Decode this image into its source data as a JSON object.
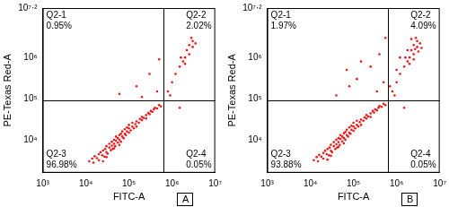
{
  "chart_data": [
    {
      "type": "scatter",
      "panel": "A",
      "x_label": "FITC-A",
      "y_label": "PE-Texas Red-A",
      "log": true,
      "grid": false,
      "color": "#f01414",
      "marker": "dot",
      "xlim": [
        1000,
        10000000
      ],
      "ylim": [
        1584.89,
        15848931.92
      ],
      "xticks": [
        {
          "value": 1000,
          "label": "10³"
        },
        {
          "value": 10000,
          "label": "10⁴"
        },
        {
          "value": 100000,
          "label": "10⁵"
        },
        {
          "value": 1000000,
          "label": "10⁶"
        },
        {
          "value": 10000000,
          "label": "10⁷"
        }
      ],
      "yticks": [
        {
          "value": 10000,
          "label": "10⁴"
        },
        {
          "value": 100000,
          "label": "10⁵"
        },
        {
          "value": 1000000,
          "label": "10⁶"
        },
        {
          "value": 15848931.92,
          "label": "10⁷·²"
        }
      ],
      "gates": {
        "x": 630000,
        "y": 90000
      },
      "quadrants": [
        {
          "name": "Q2-1",
          "value": 0.95,
          "value_label": "0.95%"
        },
        {
          "name": "Q2-2",
          "value": 2.02,
          "value_label": "2.02%"
        },
        {
          "name": "Q2-3",
          "value": 96.98,
          "value_label": "96.98%"
        },
        {
          "name": "Q2-4",
          "value": 0.05,
          "value_label": "0.05%"
        }
      ],
      "points": [
        [
          12000,
          3000
        ],
        [
          14000,
          3500
        ],
        [
          15000,
          2800
        ],
        [
          16000,
          4000
        ],
        [
          18000,
          3600
        ],
        [
          20000,
          4500
        ],
        [
          20000,
          3200
        ],
        [
          22000,
          5000
        ],
        [
          24000,
          4200
        ],
        [
          25000,
          5500
        ],
        [
          27000,
          3900
        ],
        [
          28000,
          6000
        ],
        [
          30000,
          5000
        ],
        [
          30000,
          7000
        ],
        [
          32000,
          4600
        ],
        [
          35000,
          6500
        ],
        [
          35000,
          8000
        ],
        [
          38000,
          5600
        ],
        [
          40000,
          7200
        ],
        [
          40000,
          9000
        ],
        [
          42000,
          6000
        ],
        [
          45000,
          8000
        ],
        [
          45000,
          10000
        ],
        [
          48000,
          7000
        ],
        [
          50000,
          9500
        ],
        [
          50000,
          12000
        ],
        [
          55000,
          8500
        ],
        [
          55000,
          11000
        ],
        [
          60000,
          10000
        ],
        [
          60000,
          13000
        ],
        [
          65000,
          9000
        ],
        [
          65000,
          14000
        ],
        [
          70000,
          12000
        ],
        [
          70000,
          16000
        ],
        [
          75000,
          11000
        ],
        [
          80000,
          14000
        ],
        [
          80000,
          18000
        ],
        [
          85000,
          13000
        ],
        [
          90000,
          16000
        ],
        [
          90000,
          20000
        ],
        [
          100000,
          15000
        ],
        [
          100000,
          19000
        ],
        [
          100000,
          23000
        ],
        [
          110000,
          17000
        ],
        [
          120000,
          21000
        ],
        [
          120000,
          26000
        ],
        [
          130000,
          19000
        ],
        [
          140000,
          24000
        ],
        [
          150000,
          28000
        ],
        [
          150000,
          21000
        ],
        [
          170000,
          26000
        ],
        [
          180000,
          32000
        ],
        [
          200000,
          30000
        ],
        [
          200000,
          36000
        ],
        [
          220000,
          34000
        ],
        [
          250000,
          40000
        ],
        [
          250000,
          33000
        ],
        [
          280000,
          45000
        ],
        [
          300000,
          42000
        ],
        [
          320000,
          50000
        ],
        [
          350000,
          48000
        ],
        [
          380000,
          55000
        ],
        [
          400000,
          60000
        ],
        [
          450000,
          58000
        ],
        [
          500000,
          70000
        ],
        [
          550000,
          65000
        ],
        [
          30000,
          3800
        ],
        [
          60000,
          7500
        ],
        [
          25000,
          3000
        ],
        [
          45000,
          6200
        ],
        [
          60000,
          130000
        ],
        [
          150000,
          200000
        ],
        [
          300000,
          400000
        ],
        [
          450000,
          150000
        ],
        [
          500000,
          900000
        ],
        [
          200000,
          110000
        ],
        [
          800000,
          150000
        ],
        [
          1000000,
          250000
        ],
        [
          1200000,
          400000
        ],
        [
          1500000,
          600000
        ],
        [
          1800000,
          800000
        ],
        [
          2000000,
          1000000
        ],
        [
          2200000,
          1500000
        ],
        [
          2500000,
          1200000
        ],
        [
          2500000,
          2000000
        ],
        [
          3000000,
          1800000
        ],
        [
          3000000,
          2500000
        ],
        [
          2800000,
          3000000
        ],
        [
          3500000,
          2200000
        ],
        [
          2000000,
          700000
        ],
        [
          1600000,
          1000000
        ],
        [
          900000,
          120000
        ],
        [
          1500000,
          60000
        ]
      ]
    },
    {
      "type": "scatter",
      "panel": "B",
      "x_label": "FITC-A",
      "y_label": "PE-Texas Red-A",
      "log": true,
      "grid": false,
      "color": "#f01414",
      "marker": "dot",
      "xlim": [
        1000,
        10000000
      ],
      "ylim": [
        1584.89,
        15848931.92
      ],
      "xticks": [
        {
          "value": 1000,
          "label": "10³"
        },
        {
          "value": 10000,
          "label": "10⁴"
        },
        {
          "value": 100000,
          "label": "10⁵"
        },
        {
          "value": 1000000,
          "label": "10⁶"
        },
        {
          "value": 10000000,
          "label": "10⁷"
        }
      ],
      "yticks": [
        {
          "value": 10000,
          "label": "10⁴"
        },
        {
          "value": 100000,
          "label": "10⁵"
        },
        {
          "value": 1000000,
          "label": "10⁶"
        },
        {
          "value": 15848931.92,
          "label": "10⁷·²"
        }
      ],
      "gates": {
        "x": 630000,
        "y": 90000
      },
      "quadrants": [
        {
          "name": "Q2-1",
          "value": 1.97,
          "value_label": "1.97%"
        },
        {
          "name": "Q2-2",
          "value": 4.09,
          "value_label": "4.09%"
        },
        {
          "name": "Q2-3",
          "value": 93.88,
          "value_label": "93.88%"
        },
        {
          "name": "Q2-4",
          "value": 0.05,
          "value_label": "0.05%"
        }
      ],
      "points": [
        [
          12000,
          3200
        ],
        [
          14000,
          3800
        ],
        [
          15000,
          3000
        ],
        [
          16000,
          4300
        ],
        [
          18000,
          3900
        ],
        [
          20000,
          4800
        ],
        [
          20000,
          3500
        ],
        [
          22000,
          5400
        ],
        [
          24000,
          4500
        ],
        [
          25000,
          6000
        ],
        [
          27000,
          4200
        ],
        [
          28000,
          6500
        ],
        [
          30000,
          5400
        ],
        [
          30000,
          7600
        ],
        [
          32000,
          5000
        ],
        [
          35000,
          7000
        ],
        [
          35000,
          8800
        ],
        [
          38000,
          6000
        ],
        [
          40000,
          7800
        ],
        [
          40000,
          10000
        ],
        [
          42000,
          6500
        ],
        [
          45000,
          8800
        ],
        [
          45000,
          11000
        ],
        [
          48000,
          7500
        ],
        [
          50000,
          10500
        ],
        [
          50000,
          13000
        ],
        [
          55000,
          9200
        ],
        [
          55000,
          12000
        ],
        [
          60000,
          11000
        ],
        [
          60000,
          14500
        ],
        [
          65000,
          10000
        ],
        [
          65000,
          15500
        ],
        [
          70000,
          13000
        ],
        [
          70000,
          17500
        ],
        [
          75000,
          12000
        ],
        [
          80000,
          15000
        ],
        [
          80000,
          20000
        ],
        [
          85000,
          14000
        ],
        [
          90000,
          17500
        ],
        [
          90000,
          22000
        ],
        [
          100000,
          16500
        ],
        [
          100000,
          21000
        ],
        [
          100000,
          26000
        ],
        [
          110000,
          19000
        ],
        [
          120000,
          23000
        ],
        [
          120000,
          29000
        ],
        [
          130000,
          21000
        ],
        [
          140000,
          27000
        ],
        [
          150000,
          31000
        ],
        [
          150000,
          23000
        ],
        [
          170000,
          29000
        ],
        [
          180000,
          35000
        ],
        [
          200000,
          33000
        ],
        [
          200000,
          40000
        ],
        [
          220000,
          37000
        ],
        [
          250000,
          44000
        ],
        [
          250000,
          36000
        ],
        [
          280000,
          50000
        ],
        [
          300000,
          46000
        ],
        [
          320000,
          55000
        ],
        [
          350000,
          52000
        ],
        [
          380000,
          60000
        ],
        [
          400000,
          66000
        ],
        [
          450000,
          63000
        ],
        [
          500000,
          75000
        ],
        [
          550000,
          70000
        ],
        [
          30000,
          4100
        ],
        [
          60000,
          8200
        ],
        [
          25000,
          3300
        ],
        [
          45000,
          6800
        ],
        [
          40000,
          120000
        ],
        [
          80000,
          200000
        ],
        [
          120000,
          300000
        ],
        [
          250000,
          600000
        ],
        [
          350000,
          150000
        ],
        [
          400000,
          1200000
        ],
        [
          150000,
          800000
        ],
        [
          500000,
          250000
        ],
        [
          70000,
          500000
        ],
        [
          550000,
          3000000
        ],
        [
          800000,
          150000
        ],
        [
          1000000,
          250000
        ],
        [
          1200000,
          400000
        ],
        [
          1500000,
          600000
        ],
        [
          1800000,
          800000
        ],
        [
          2000000,
          1000000
        ],
        [
          2200000,
          1500000
        ],
        [
          2500000,
          1200000
        ],
        [
          2500000,
          2000000
        ],
        [
          3000000,
          1800000
        ],
        [
          3000000,
          2500000
        ],
        [
          2800000,
          3000000
        ],
        [
          3500000,
          2200000
        ],
        [
          2000000,
          700000
        ],
        [
          1600000,
          1000000
        ],
        [
          900000,
          120000
        ],
        [
          1200000,
          1000000
        ],
        [
          1800000,
          1500000
        ],
        [
          2200000,
          2800000
        ],
        [
          2700000,
          1600000
        ],
        [
          3200000,
          1400000
        ],
        [
          1000000,
          500000
        ],
        [
          2500000,
          900000
        ],
        [
          3800000,
          1700000
        ],
        [
          700000,
          200000
        ],
        [
          1500000,
          60000
        ]
      ]
    }
  ]
}
